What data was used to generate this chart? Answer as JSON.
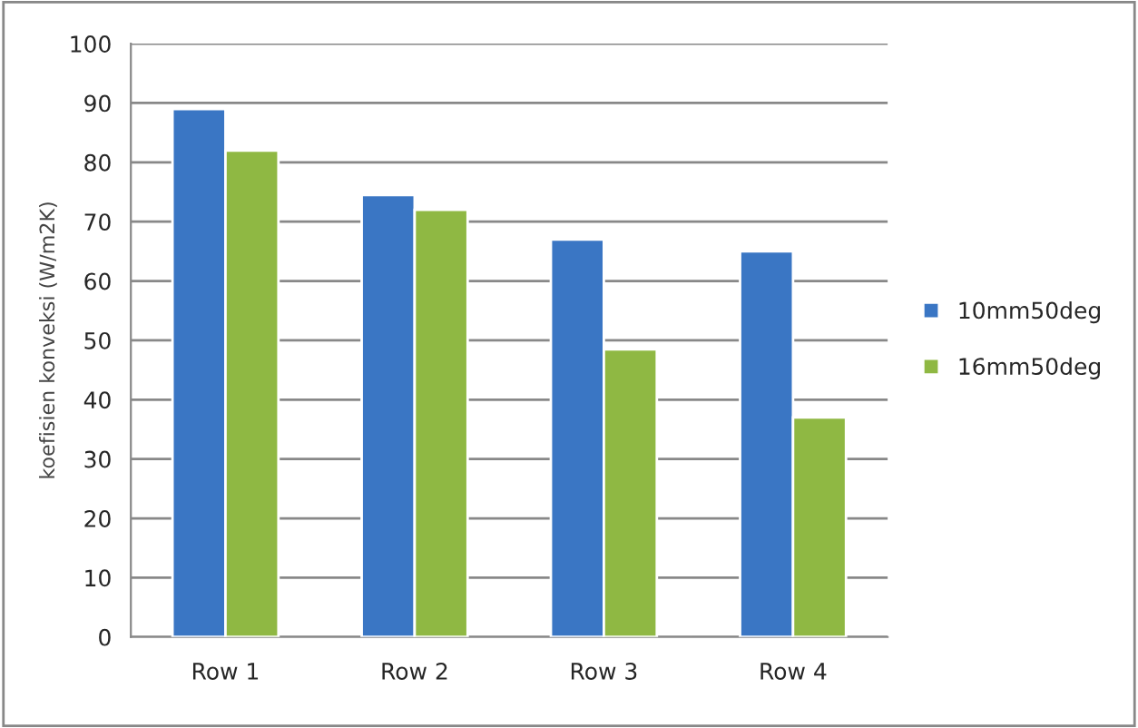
{
  "chart_data": {
    "type": "bar",
    "ylabel": "koefisien konveksi (W/m2K)",
    "categories": [
      "Row 1",
      "Row 2",
      "Row 3",
      "Row 4"
    ],
    "series": [
      {
        "name": "10mm50deg",
        "color": "#3a76c4",
        "values": [
          89,
          74.5,
          67,
          65
        ]
      },
      {
        "name": "16mm50deg",
        "color": "#8fb843",
        "values": [
          82,
          72,
          48.5,
          37
        ]
      }
    ],
    "ylim": [
      0,
      100
    ],
    "yticks": [
      0,
      10,
      20,
      30,
      40,
      50,
      60,
      70,
      80,
      90,
      100
    ],
    "grid": "y",
    "legend": "right"
  }
}
